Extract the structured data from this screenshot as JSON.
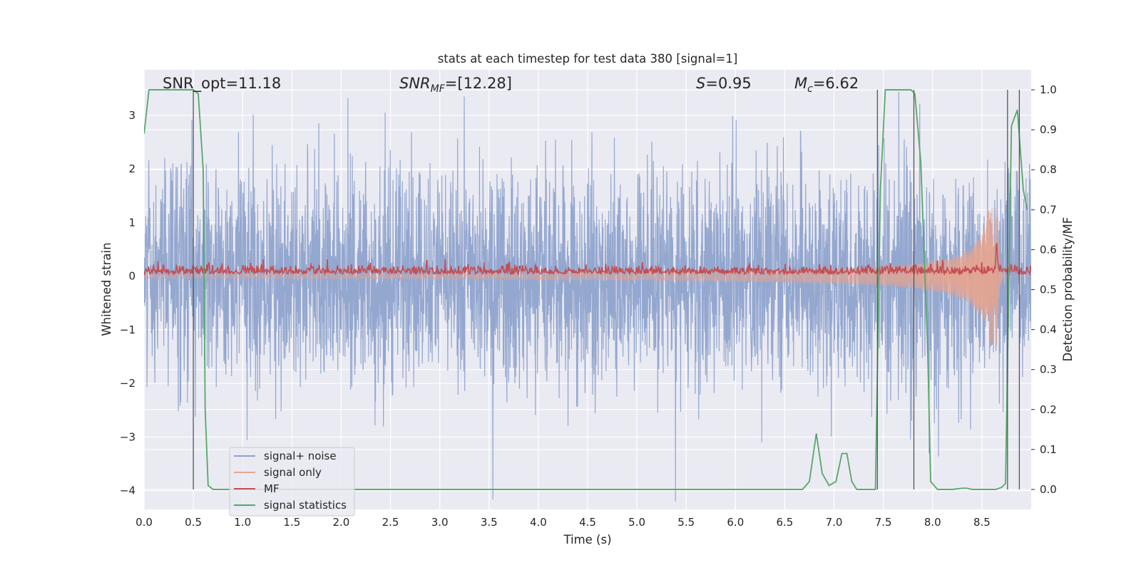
{
  "chart_data": {
    "type": "line",
    "title": "stats at each timestep for test data 380 [signal=1]",
    "xlabel": "Time (s)",
    "ylabel": "Whitened strain",
    "y2label": "Detection probability/MF",
    "xlim": [
      0.0,
      9.0
    ],
    "ylim": [
      -4.35,
      3.85
    ],
    "y2lim": [
      -0.05,
      1.05
    ],
    "xticks": [
      "0.0",
      "0.5",
      "1.0",
      "1.5",
      "2.0",
      "2.5",
      "3.0",
      "3.5",
      "4.0",
      "4.5",
      "5.0",
      "5.5",
      "6.0",
      "6.5",
      "7.0",
      "7.5",
      "8.0",
      "8.5"
    ],
    "yticks": [
      "−4",
      "−3",
      "−2",
      "−1",
      "0",
      "1",
      "2",
      "3"
    ],
    "y2ticks": [
      "0.0",
      "0.1",
      "0.2",
      "0.3",
      "0.4",
      "0.5",
      "0.6",
      "0.7",
      "0.8",
      "0.9",
      "1.0"
    ],
    "grid": true,
    "legend_position": "lower-left",
    "annotations": {
      "snr_opt": "SNR_opt=11.18",
      "snr_mf_sym": "SNR",
      "snr_mf_sub": "MF",
      "snr_mf_val": "=[12.28]",
      "s_sym": "S",
      "s_val": "=0.95",
      "mc_sym": "M",
      "mc_sub": "c",
      "mc_val": "=6.62"
    },
    "series": [
      {
        "name": "signal+ noise",
        "color": "#8fa3cc",
        "axis": "left",
        "kind": "noise",
        "sigma": 1.0
      },
      {
        "name": "signal only",
        "color": "#e8a48e",
        "axis": "left",
        "kind": "chirp",
        "t_merge": 8.66,
        "amp_start": 0.04,
        "amp_end": 1.3
      },
      {
        "name": "MF",
        "color": "#c44e52",
        "axis": "right",
        "kind": "mf",
        "baseline": 0.545,
        "peak_t": 8.65,
        "peak_value": 0.62
      },
      {
        "name": "signal statistics",
        "color": "#55a868",
        "axis": "right",
        "kind": "line",
        "x": [
          0.0,
          0.05,
          0.12,
          0.2,
          0.3,
          0.4,
          0.5,
          0.55,
          0.6,
          0.62,
          0.65,
          0.7,
          1.0,
          2.0,
          3.0,
          4.0,
          5.0,
          6.0,
          6.55,
          6.68,
          6.75,
          6.82,
          6.88,
          6.95,
          7.02,
          7.08,
          7.13,
          7.18,
          7.23,
          7.28,
          7.35,
          7.42,
          7.47,
          7.52,
          7.6,
          7.7,
          7.78,
          7.82,
          7.88,
          7.95,
          7.98,
          8.05,
          8.2,
          8.3,
          8.35,
          8.4,
          8.55,
          8.64,
          8.7,
          8.74,
          8.8,
          8.86,
          8.92,
          8.96
        ],
        "y": [
          0.89,
          1.0,
          1.0,
          1.0,
          1.0,
          1.0,
          1.0,
          0.99,
          0.8,
          0.2,
          0.01,
          0.0,
          0.0,
          0.0,
          0.0,
          0.0,
          0.0,
          0.0,
          0.0,
          0.0,
          0.02,
          0.14,
          0.04,
          0.01,
          0.02,
          0.09,
          0.09,
          0.02,
          0.0,
          0.0,
          0.0,
          0.0,
          0.75,
          1.0,
          1.0,
          1.0,
          1.0,
          0.99,
          0.82,
          0.35,
          0.02,
          0.0,
          0.0,
          0.003,
          0.003,
          0.0,
          0.0,
          0.0,
          0.005,
          0.015,
          0.91,
          0.95,
          0.75,
          0.7
        ]
      }
    ],
    "vlines": [
      0.5,
      7.44,
      7.81,
      8.76,
      8.88
    ]
  }
}
